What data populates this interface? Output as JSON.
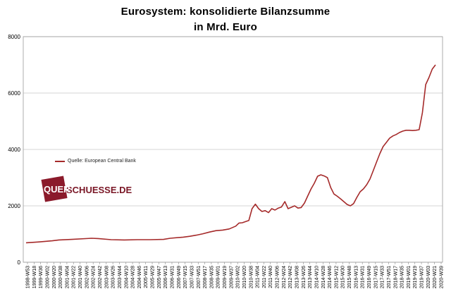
{
  "chart_data": {
    "type": "line",
    "title": "Eurosystem: konsolidierte Bilanzsumme",
    "subtitle": "in Mrd. Euro",
    "ylim": [
      0,
      8000
    ],
    "yticks": [
      "0",
      "2000",
      "4000",
      "6000",
      "8000"
    ],
    "grid": true,
    "legend_position": "left-middle",
    "series": [
      {
        "name": "Quelle: European Central Bank",
        "color": "#a52a2a",
        "values": [
          [
            0,
            690
          ],
          [
            4,
            720
          ],
          [
            8,
            760
          ],
          [
            10,
            790
          ],
          [
            14,
            810
          ],
          [
            20,
            850
          ],
          [
            22,
            840
          ],
          [
            26,
            800
          ],
          [
            30,
            790
          ],
          [
            34,
            800
          ],
          [
            38,
            800
          ],
          [
            42,
            810
          ],
          [
            44,
            850
          ],
          [
            48,
            890
          ],
          [
            50,
            920
          ],
          [
            52,
            960
          ],
          [
            54,
            1010
          ],
          [
            56,
            1070
          ],
          [
            58,
            1120
          ],
          [
            60,
            1140
          ],
          [
            62,
            1180
          ],
          [
            64,
            1280
          ],
          [
            65,
            1390
          ],
          [
            66,
            1400
          ],
          [
            67,
            1440
          ],
          [
            68,
            1480
          ],
          [
            69,
            1900
          ],
          [
            70,
            2060
          ],
          [
            71,
            1900
          ],
          [
            72,
            1800
          ],
          [
            73,
            1830
          ],
          [
            74,
            1760
          ],
          [
            75,
            1900
          ],
          [
            76,
            1850
          ],
          [
            77,
            1920
          ],
          [
            78,
            1960
          ],
          [
            79,
            2150
          ],
          [
            80,
            1900
          ],
          [
            81,
            1950
          ],
          [
            82,
            2000
          ],
          [
            83,
            1920
          ],
          [
            84,
            1940
          ],
          [
            85,
            2100
          ],
          [
            86,
            2350
          ],
          [
            87,
            2600
          ],
          [
            88,
            2800
          ],
          [
            89,
            3050
          ],
          [
            90,
            3100
          ],
          [
            91,
            3060
          ],
          [
            92,
            3000
          ],
          [
            93,
            2650
          ],
          [
            94,
            2420
          ],
          [
            95,
            2340
          ],
          [
            96,
            2250
          ],
          [
            97,
            2150
          ],
          [
            98,
            2050
          ],
          [
            99,
            2000
          ],
          [
            100,
            2080
          ],
          [
            101,
            2300
          ],
          [
            102,
            2500
          ],
          [
            103,
            2600
          ],
          [
            104,
            2750
          ],
          [
            105,
            2950
          ],
          [
            106,
            3250
          ],
          [
            107,
            3550
          ],
          [
            108,
            3850
          ],
          [
            109,
            4100
          ],
          [
            110,
            4250
          ],
          [
            111,
            4400
          ],
          [
            112,
            4480
          ],
          [
            113,
            4530
          ],
          [
            114,
            4600
          ],
          [
            115,
            4650
          ],
          [
            116,
            4680
          ],
          [
            117,
            4680
          ],
          [
            118,
            4670
          ],
          [
            119,
            4680
          ],
          [
            120,
            4700
          ],
          [
            121,
            5300
          ],
          [
            122,
            6300
          ],
          [
            123,
            6550
          ],
          [
            124,
            6850
          ],
          [
            125,
            7000
          ]
        ]
      }
    ],
    "x_tick_labels": [
      "1998-W53",
      "1999-W18",
      "1999-W36",
      "2000-W02",
      "2000-W20",
      "2000-W38",
      "2001-W04",
      "2001-W22",
      "2001-W40",
      "2002-W06",
      "2002-W24",
      "2002-W42",
      "2003-W08",
      "2003-W26",
      "2003-W44",
      "2004-W10",
      "2004-W28",
      "2004-W46",
      "2005-W11",
      "2005-W29",
      "2005-W47",
      "2006-W13",
      "2006-W31",
      "2006-W49",
      "2007-W15",
      "2007-W33",
      "2007-W51",
      "2008-W17",
      "2008-W35",
      "2009-W01",
      "2009-W19",
      "2009-W37",
      "2010-W02",
      "2010-W20",
      "2010-W38",
      "2011-W04",
      "2011-W22",
      "2011-W40",
      "2012-W06",
      "2012-W24",
      "2012-W42",
      "2013-W08",
      "2013-W26",
      "2013-W44",
      "2014-W10",
      "2014-W28",
      "2014-W46",
      "2015-W12",
      "2015-W30",
      "2015-W48",
      "2016-W13",
      "2016-W31",
      "2016-W49",
      "2017-W15",
      "2017-W33",
      "2017-W51",
      "2018-W17",
      "2018-W35",
      "2019-W01",
      "2019-W19",
      "2019-W37",
      "2020-W03",
      "2020-W21",
      "2020-W39"
    ]
  },
  "watermark": {
    "prefix": "QUER",
    "suffix": "SCHUESSE.DE"
  }
}
